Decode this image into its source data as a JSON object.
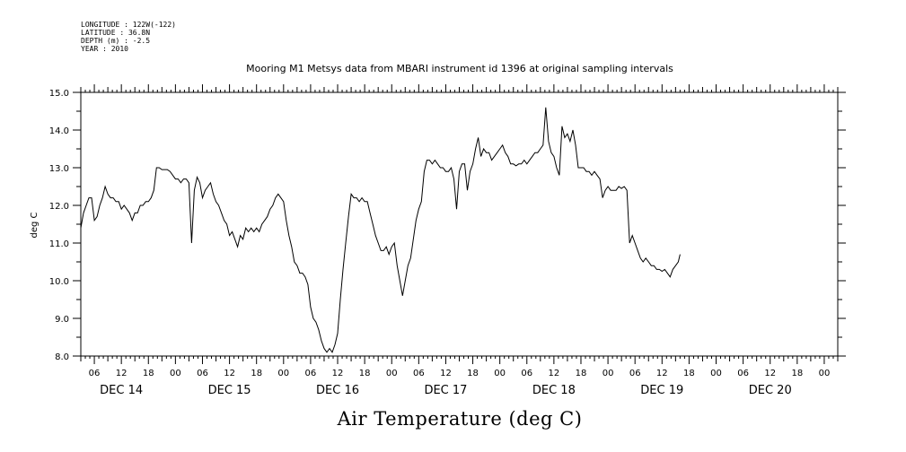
{
  "header": {
    "meta_lines": [
      "LONGITUDE : 122W(-122)",
      "LATITUDE : 36.8N",
      "DEPTH (m) : -2.5",
      "YEAR : 2010"
    ]
  },
  "chart_data": {
    "type": "line",
    "title": "Mooring M1 Metsys data from MBARI instrument id 1396 at original sampling intervals",
    "xlabel": "",
    "ylabel": "deg C",
    "caption": "Air Temperature (deg C)",
    "x_unit": "hours since Dec 13 2010 00:00",
    "xlim": [
      3,
      171
    ],
    "ylim": [
      8.0,
      15.0
    ],
    "y_ticks": [
      "8.0",
      "9.0",
      "10.0",
      "11.0",
      "12.0",
      "13.0",
      "14.0",
      "15.0"
    ],
    "hour_ticks": [
      {
        "t": 30,
        "label": "06"
      },
      {
        "t": 36,
        "label": "12"
      },
      {
        "t": 42,
        "label": "18"
      },
      {
        "t": 48,
        "label": "00"
      },
      {
        "t": 54,
        "label": "06"
      },
      {
        "t": 60,
        "label": "12"
      },
      {
        "t": 66,
        "label": "18"
      },
      {
        "t": 72,
        "label": "00"
      },
      {
        "t": 78,
        "label": "06"
      },
      {
        "t": 84,
        "label": "12"
      },
      {
        "t": 90,
        "label": "18"
      },
      {
        "t": 96,
        "label": "00"
      },
      {
        "t": 102,
        "label": "06"
      },
      {
        "t": 108,
        "label": "12"
      },
      {
        "t": 114,
        "label": "18"
      },
      {
        "t": 120,
        "label": "00"
      },
      {
        "t": 126,
        "label": "06"
      },
      {
        "t": 132,
        "label": "12"
      },
      {
        "t": 138,
        "label": "18"
      },
      {
        "t": 144,
        "label": "00"
      },
      {
        "t": 150,
        "label": "06"
      },
      {
        "t": 156,
        "label": "12"
      },
      {
        "t": 162,
        "label": "18"
      },
      {
        "t": 168,
        "label": "00"
      },
      {
        "t": 6,
        "label": "06"
      },
      {
        "t": 12,
        "label": "12"
      },
      {
        "t": 18,
        "label": "18"
      },
      {
        "t": 24,
        "label": "00"
      }
    ],
    "day_labels": [
      {
        "t": 12,
        "label": "DEC 14"
      },
      {
        "t": 36,
        "label": "DEC 15"
      },
      {
        "t": 60,
        "label": "DEC 16"
      },
      {
        "t": 84,
        "label": "DEC 17"
      },
      {
        "t": 108,
        "label": "DEC 18"
      },
      {
        "t": 132,
        "label": "DEC 19"
      },
      {
        "t": 156,
        "label": "DEC 20"
      }
    ],
    "grid": false,
    "series": [
      {
        "points": [
          [
            3.0,
            11.4
          ],
          [
            3.6,
            11.8
          ],
          [
            4.2,
            12.0
          ],
          [
            4.8,
            12.2
          ],
          [
            5.4,
            12.2
          ],
          [
            6.0,
            11.6
          ],
          [
            6.6,
            11.7
          ],
          [
            7.2,
            12.0
          ],
          [
            7.8,
            12.2
          ],
          [
            8.4,
            12.5
          ],
          [
            9.0,
            12.3
          ],
          [
            9.6,
            12.2
          ],
          [
            10.2,
            12.2
          ],
          [
            10.8,
            12.1
          ],
          [
            11.4,
            12.1
          ],
          [
            12.0,
            11.9
          ],
          [
            12.6,
            12.0
          ],
          [
            13.2,
            11.9
          ],
          [
            13.8,
            11.8
          ],
          [
            14.4,
            11.6
          ],
          [
            15.0,
            11.8
          ],
          [
            15.6,
            11.8
          ],
          [
            16.2,
            12.0
          ],
          [
            16.8,
            12.0
          ],
          [
            17.4,
            12.1
          ],
          [
            18.0,
            12.1
          ],
          [
            18.6,
            12.2
          ],
          [
            19.2,
            12.4
          ],
          [
            19.8,
            13.0
          ],
          [
            20.4,
            13.0
          ],
          [
            21.0,
            12.95
          ],
          [
            21.6,
            12.95
          ],
          [
            22.2,
            12.95
          ],
          [
            22.8,
            12.9
          ],
          [
            23.4,
            12.8
          ],
          [
            24.0,
            12.7
          ],
          [
            24.6,
            12.7
          ],
          [
            25.2,
            12.6
          ],
          [
            25.8,
            12.7
          ],
          [
            26.4,
            12.7
          ],
          [
            27.0,
            12.6
          ],
          [
            27.6,
            11.0
          ],
          [
            28.2,
            12.4
          ],
          [
            28.8,
            12.75
          ],
          [
            29.4,
            12.6
          ],
          [
            30.0,
            12.2
          ],
          [
            30.6,
            12.4
          ],
          [
            31.2,
            12.5
          ],
          [
            31.8,
            12.6
          ],
          [
            32.4,
            12.3
          ],
          [
            33.0,
            12.1
          ],
          [
            33.6,
            12.0
          ],
          [
            34.2,
            11.8
          ],
          [
            34.8,
            11.6
          ],
          [
            35.4,
            11.5
          ],
          [
            36.0,
            11.2
          ],
          [
            36.6,
            11.3
          ],
          [
            37.2,
            11.1
          ],
          [
            37.8,
            10.9
          ],
          [
            38.4,
            11.2
          ],
          [
            39.0,
            11.1
          ],
          [
            39.6,
            11.4
          ],
          [
            40.2,
            11.3
          ],
          [
            40.8,
            11.4
          ],
          [
            41.4,
            11.3
          ],
          [
            42.0,
            11.4
          ],
          [
            42.6,
            11.3
          ],
          [
            43.2,
            11.5
          ],
          [
            43.8,
            11.6
          ],
          [
            44.4,
            11.7
          ],
          [
            45.0,
            11.9
          ],
          [
            45.6,
            12.0
          ],
          [
            46.2,
            12.2
          ],
          [
            46.8,
            12.3
          ],
          [
            47.4,
            12.2
          ],
          [
            48.0,
            12.1
          ],
          [
            48.6,
            11.6
          ],
          [
            49.2,
            11.2
          ],
          [
            49.8,
            10.9
          ],
          [
            50.4,
            10.5
          ],
          [
            51.0,
            10.4
          ],
          [
            51.6,
            10.2
          ],
          [
            52.2,
            10.2
          ],
          [
            52.8,
            10.1
          ],
          [
            53.4,
            9.9
          ],
          [
            54.0,
            9.3
          ],
          [
            54.6,
            9.0
          ],
          [
            55.2,
            8.9
          ],
          [
            55.8,
            8.7
          ],
          [
            56.4,
            8.4
          ],
          [
            57.0,
            8.2
          ],
          [
            57.6,
            8.1
          ],
          [
            58.2,
            8.2
          ],
          [
            58.8,
            8.1
          ],
          [
            59.4,
            8.3
          ],
          [
            60.0,
            8.6
          ],
          [
            60.6,
            9.5
          ],
          [
            61.2,
            10.3
          ],
          [
            61.8,
            11.0
          ],
          [
            62.4,
            11.7
          ],
          [
            63.0,
            12.3
          ],
          [
            63.6,
            12.2
          ],
          [
            64.2,
            12.2
          ],
          [
            64.8,
            12.1
          ],
          [
            65.4,
            12.2
          ],
          [
            66.0,
            12.1
          ],
          [
            66.6,
            12.1
          ],
          [
            67.2,
            11.8
          ],
          [
            67.8,
            11.5
          ],
          [
            68.4,
            11.2
          ],
          [
            69.0,
            11.0
          ],
          [
            69.6,
            10.8
          ],
          [
            70.2,
            10.8
          ],
          [
            70.8,
            10.9
          ],
          [
            71.4,
            10.7
          ],
          [
            72.0,
            10.9
          ],
          [
            72.6,
            11.0
          ],
          [
            73.2,
            10.4
          ],
          [
            73.8,
            10.0
          ],
          [
            74.4,
            9.6
          ],
          [
            75.0,
            10.0
          ],
          [
            75.6,
            10.4
          ],
          [
            76.2,
            10.6
          ],
          [
            76.8,
            11.1
          ],
          [
            77.4,
            11.6
          ],
          [
            78.0,
            11.9
          ],
          [
            78.6,
            12.1
          ],
          [
            79.2,
            12.9
          ],
          [
            79.8,
            13.2
          ],
          [
            80.4,
            13.2
          ],
          [
            81.0,
            13.1
          ],
          [
            81.6,
            13.2
          ],
          [
            82.2,
            13.1
          ],
          [
            82.8,
            13.0
          ],
          [
            83.4,
            13.0
          ],
          [
            84.0,
            12.9
          ],
          [
            84.6,
            12.9
          ],
          [
            85.2,
            13.0
          ],
          [
            85.8,
            12.7
          ],
          [
            86.4,
            11.9
          ],
          [
            87.0,
            12.9
          ],
          [
            87.6,
            13.1
          ],
          [
            88.2,
            13.1
          ],
          [
            88.8,
            12.4
          ],
          [
            89.4,
            12.9
          ],
          [
            90.0,
            13.1
          ],
          [
            90.6,
            13.5
          ],
          [
            91.2,
            13.8
          ],
          [
            91.8,
            13.3
          ],
          [
            92.4,
            13.5
          ],
          [
            93.0,
            13.4
          ],
          [
            93.6,
            13.4
          ],
          [
            94.2,
            13.2
          ],
          [
            94.8,
            13.3
          ],
          [
            95.4,
            13.4
          ],
          [
            96.0,
            13.5
          ],
          [
            96.6,
            13.6
          ],
          [
            97.2,
            13.4
          ],
          [
            97.8,
            13.3
          ],
          [
            98.4,
            13.1
          ],
          [
            99.0,
            13.1
          ],
          [
            99.6,
            13.05
          ],
          [
            100.2,
            13.1
          ],
          [
            100.8,
            13.1
          ],
          [
            101.4,
            13.2
          ],
          [
            102.0,
            13.1
          ],
          [
            102.6,
            13.2
          ],
          [
            103.2,
            13.3
          ],
          [
            103.8,
            13.4
          ],
          [
            104.4,
            13.4
          ],
          [
            105.0,
            13.5
          ],
          [
            105.6,
            13.6
          ],
          [
            106.2,
            14.6
          ],
          [
            106.8,
            13.7
          ],
          [
            107.4,
            13.4
          ],
          [
            108.0,
            13.3
          ],
          [
            108.6,
            13.0
          ],
          [
            109.2,
            12.8
          ],
          [
            109.8,
            14.1
          ],
          [
            110.4,
            13.8
          ],
          [
            111.0,
            13.9
          ],
          [
            111.6,
            13.7
          ],
          [
            112.2,
            14.0
          ],
          [
            112.8,
            13.6
          ],
          [
            113.4,
            13.0
          ],
          [
            114.0,
            13.0
          ],
          [
            114.6,
            13.0
          ],
          [
            115.2,
            12.9
          ],
          [
            115.8,
            12.9
          ],
          [
            116.4,
            12.8
          ],
          [
            117.0,
            12.9
          ],
          [
            117.6,
            12.8
          ],
          [
            118.2,
            12.7
          ],
          [
            118.8,
            12.2
          ],
          [
            119.4,
            12.4
          ],
          [
            120.0,
            12.5
          ],
          [
            120.6,
            12.4
          ],
          [
            121.2,
            12.4
          ],
          [
            121.8,
            12.4
          ],
          [
            122.4,
            12.5
          ],
          [
            123.0,
            12.45
          ],
          [
            123.6,
            12.5
          ],
          [
            124.2,
            12.4
          ],
          [
            124.8,
            11.0
          ],
          [
            125.4,
            11.2
          ],
          [
            126.0,
            11.0
          ],
          [
            126.6,
            10.8
          ],
          [
            127.2,
            10.6
          ],
          [
            127.8,
            10.5
          ],
          [
            128.4,
            10.6
          ],
          [
            129.0,
            10.5
          ],
          [
            129.6,
            10.4
          ],
          [
            130.2,
            10.4
          ],
          [
            130.8,
            10.3
          ],
          [
            131.4,
            10.3
          ],
          [
            132.0,
            10.25
          ],
          [
            132.6,
            10.3
          ],
          [
            133.2,
            10.2
          ],
          [
            133.8,
            10.1
          ],
          [
            134.4,
            10.3
          ],
          [
            135.0,
            10.4
          ],
          [
            135.6,
            10.5
          ],
          [
            136.0,
            10.7
          ]
        ]
      }
    ]
  }
}
